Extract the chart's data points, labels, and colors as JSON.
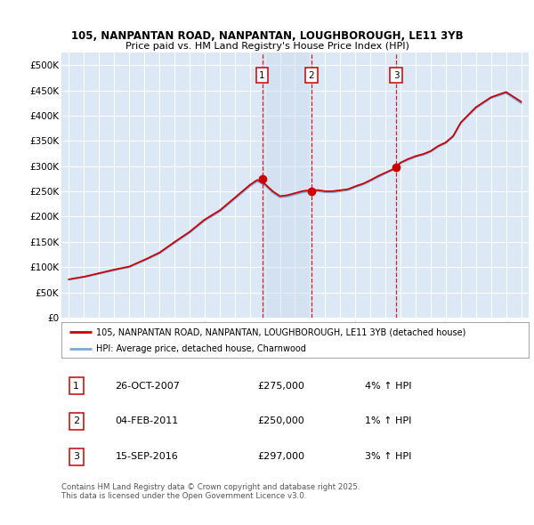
{
  "title1": "105, NANPANTAN ROAD, NANPANTAN, LOUGHBOROUGH, LE11 3YB",
  "title2": "Price paid vs. HM Land Registry's House Price Index (HPI)",
  "ylim": [
    0,
    525000
  ],
  "yticks": [
    0,
    50000,
    100000,
    150000,
    200000,
    250000,
    300000,
    350000,
    400000,
    450000,
    500000
  ],
  "ytick_labels": [
    "£0",
    "£50K",
    "£100K",
    "£150K",
    "£200K",
    "£250K",
    "£300K",
    "£350K",
    "£400K",
    "£450K",
    "£500K"
  ],
  "bg_color": "#ffffff",
  "plot_bg_color": "#dce8f5",
  "plot_bg_color2": "#ccdcee",
  "grid_color": "#ffffff",
  "hpi_color": "#7aaadd",
  "price_color": "#cc0000",
  "vline_color": "#cc0000",
  "purchase_dates": [
    2007.82,
    2011.09,
    2016.71
  ],
  "purchase_prices": [
    275000,
    250000,
    297000
  ],
  "purchase_labels": [
    "1",
    "2",
    "3"
  ],
  "legend_price_label": "105, NANPANTAN ROAD, NANPANTAN, LOUGHBOROUGH, LE11 3YB (detached house)",
  "legend_hpi_label": "HPI: Average price, detached house, Charnwood",
  "table_data": [
    {
      "num": "1",
      "date": "26-OCT-2007",
      "price": "£275,000",
      "hpi": "4% ↑ HPI"
    },
    {
      "num": "2",
      "date": "04-FEB-2011",
      "price": "£250,000",
      "hpi": "1% ↑ HPI"
    },
    {
      "num": "3",
      "date": "15-SEP-2016",
      "price": "£297,000",
      "hpi": "3% ↑ HPI"
    }
  ],
  "footnote": "Contains HM Land Registry data © Crown copyright and database right 2025.\nThis data is licensed under the Open Government Licence v3.0.",
  "xmin": 1994.5,
  "xmax": 2025.5
}
